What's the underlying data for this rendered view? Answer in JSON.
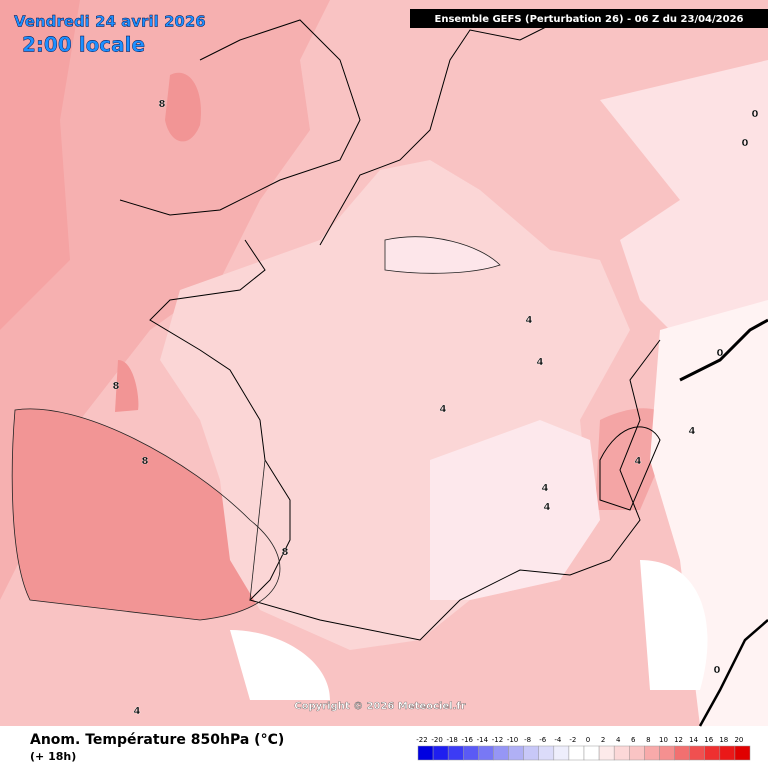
{
  "header": {
    "date": "Vendredi 24 avril 2026",
    "time": "2:00 locale",
    "run": "Ensemble GEFS  (Perturbation 26)  -  06 Z du 23/04/2026"
  },
  "map": {
    "copyright": "Copyright © 2026 Meteociel.fr",
    "contour_labels": [
      8,
      8,
      8,
      8,
      4,
      4,
      4,
      4,
      4,
      4,
      4,
      4,
      0,
      0,
      0,
      0
    ]
  },
  "footer": {
    "title": "Anom. Température 850hPa (°C)",
    "lead": "(+ 18h)"
  },
  "scale": {
    "labels": [
      -22,
      -20,
      -18,
      -16,
      -14,
      -12,
      -10,
      -8,
      -6,
      -4,
      -2,
      0,
      2,
      4,
      6,
      8,
      10,
      12,
      14,
      16,
      18,
      20
    ],
    "colors": [
      "#0000e0",
      "#1e1ef0",
      "#3c3cf5",
      "#5a5af5",
      "#7878f5",
      "#9696f5",
      "#b0b0f5",
      "#c8c8f8",
      "#dcdcfa",
      "#eeeefc",
      "#ffffff",
      "#ffffff",
      "#fdeaea",
      "#fcd8d8",
      "#fac4c4",
      "#f8aaaa",
      "#f59090",
      "#f27070",
      "#f05050",
      "#ee3030",
      "#ea1818",
      "#e00000"
    ]
  }
}
